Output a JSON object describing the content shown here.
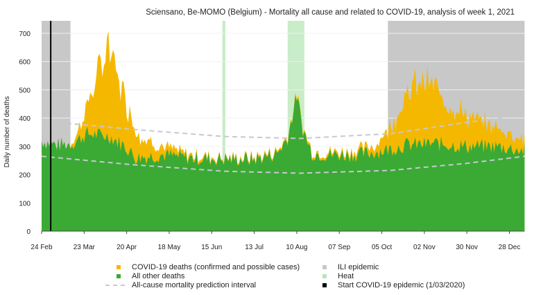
{
  "chart_data": {
    "type": "area",
    "title": "Sciensano, Be-MOMO (Belgium) - Mortality all cause and related to COVID-19, analysis of week 1, 2021",
    "xlabel": "",
    "ylabel": "Daily number of deaths",
    "ylim": [
      0,
      750
    ],
    "yticks": [
      0,
      100,
      200,
      300,
      400,
      500,
      600,
      700
    ],
    "xticks": [
      {
        "day": 0,
        "label": "24 Feb"
      },
      {
        "day": 28,
        "label": "23 Mar"
      },
      {
        "day": 56,
        "label": "20 Apr"
      },
      {
        "day": 84,
        "label": "18 May"
      },
      {
        "day": 112,
        "label": "15 Jun"
      },
      {
        "day": 140,
        "label": "13 Jul"
      },
      {
        "day": 168,
        "label": "10 Aug"
      },
      {
        "day": 196,
        "label": "07 Sep"
      },
      {
        "day": 224,
        "label": "05 Oct"
      },
      {
        "day": 252,
        "label": "02 Nov"
      },
      {
        "day": 280,
        "label": "30 Nov"
      },
      {
        "day": 308,
        "label": "28 Dec"
      }
    ],
    "xlim_days": [
      0,
      318
    ],
    "series": [
      {
        "name": "All other deaths",
        "color": "#3aaa35",
        "keypoints": [
          [
            0,
            320
          ],
          [
            10,
            305
          ],
          [
            20,
            310
          ],
          [
            30,
            345
          ],
          [
            45,
            335
          ],
          [
            55,
            300
          ],
          [
            62,
            260
          ],
          [
            80,
            270
          ],
          [
            100,
            258
          ],
          [
            120,
            255
          ],
          [
            140,
            255
          ],
          [
            155,
            275
          ],
          [
            162,
            330
          ],
          [
            168,
            480
          ],
          [
            172,
            360
          ],
          [
            178,
            275
          ],
          [
            190,
            270
          ],
          [
            210,
            272
          ],
          [
            225,
            285
          ],
          [
            240,
            305
          ],
          [
            260,
            310
          ],
          [
            280,
            300
          ],
          [
            300,
            300
          ],
          [
            318,
            285
          ]
        ]
      },
      {
        "name": "COVID-19 deaths (confirmed and possible cases)",
        "color": "#f5b800",
        "keypoints": [
          [
            0,
            0
          ],
          [
            18,
            0
          ],
          [
            24,
            30
          ],
          [
            32,
            130
          ],
          [
            40,
            260
          ],
          [
            44,
            320
          ],
          [
            50,
            230
          ],
          [
            58,
            140
          ],
          [
            66,
            70
          ],
          [
            80,
            30
          ],
          [
            95,
            12
          ],
          [
            120,
            5
          ],
          [
            160,
            8
          ],
          [
            200,
            10
          ],
          [
            220,
            25
          ],
          [
            232,
            100
          ],
          [
            242,
            190
          ],
          [
            250,
            230
          ],
          [
            258,
            200
          ],
          [
            270,
            140
          ],
          [
            285,
            95
          ],
          [
            300,
            65
          ],
          [
            318,
            40
          ]
        ]
      }
    ],
    "prediction_interval": {
      "name": "All-cause mortality prediction interval",
      "lower": [
        [
          0,
          265
        ],
        [
          60,
          235
        ],
        [
          120,
          212
        ],
        [
          170,
          205
        ],
        [
          230,
          215
        ],
        [
          280,
          240
        ],
        [
          318,
          265
        ]
      ],
      "upper": [
        [
          0,
          390
        ],
        [
          60,
          360
        ],
        [
          120,
          335
        ],
        [
          170,
          328
        ],
        [
          230,
          345
        ],
        [
          280,
          385
        ],
        [
          318,
          412
        ]
      ]
    },
    "ili_epidemic": [
      [
        0,
        19
      ],
      [
        228,
        318
      ]
    ],
    "heat": [
      [
        119,
        121
      ],
      [
        162,
        173
      ]
    ],
    "covid_start_day": 6,
    "legend": [
      {
        "label": "COVID-19 deaths (confirmed and possible cases)",
        "color": "#f5b800",
        "kind": "square"
      },
      {
        "label": "All other deaths",
        "color": "#3aaa35",
        "kind": "square"
      },
      {
        "label": "All-cause mortality prediction interval",
        "color": "#c8c8d0",
        "kind": "dash"
      },
      {
        "label": "ILI epidemic",
        "color": "#c8c8c8",
        "kind": "square"
      },
      {
        "label": "Heat",
        "color": "#b8e6b8",
        "kind": "square"
      },
      {
        "label": "Start COVID-19 epidemic (1/03/2020)",
        "color": "#000000",
        "kind": "square"
      }
    ],
    "legend_position": "bottom"
  }
}
